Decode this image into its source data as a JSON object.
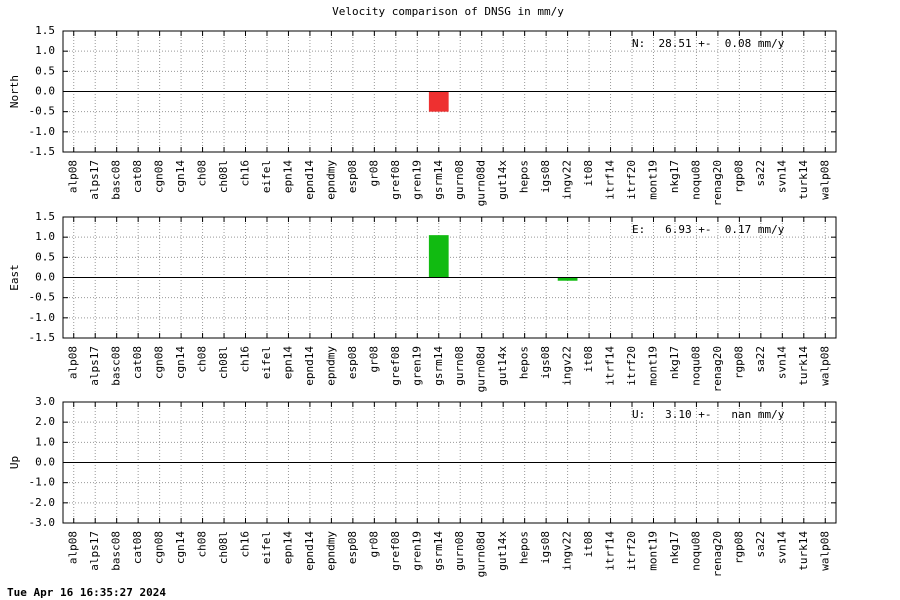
{
  "title": "Velocity comparison of DNSG in mm/y",
  "timestamp": "Tue Apr 16 16:35:27 2024",
  "chart_data": [
    {
      "type": "bar",
      "ylabel": "North",
      "annotation": "N:  28.51 +-  0.08 mm/y",
      "color": "#ee3030",
      "grid": true,
      "categories": [
        "alp08",
        "alps17",
        "basc08",
        "cat08",
        "cgn08",
        "cgn14",
        "ch08",
        "ch08l",
        "ch16",
        "eifel",
        "epn14",
        "epnd14",
        "epndmy",
        "esp08",
        "gr08",
        "gref08",
        "gren19",
        "gsrm14",
        "gurn08",
        "gurn08d",
        "gut14x",
        "hepos",
        "igs08",
        "ingv22",
        "it08",
        "itrf14",
        "itrf20",
        "mont19",
        "nkg17",
        "noqu08",
        "renag20",
        "rgp08",
        "sa22",
        "svn14",
        "turk14",
        "walp08"
      ],
      "values": [
        0,
        0,
        0,
        0,
        0,
        0,
        0,
        0,
        0,
        0,
        0,
        0,
        0,
        0,
        0,
        0,
        0,
        -0.5,
        0,
        0,
        0,
        0,
        0,
        0,
        0,
        0,
        0,
        0,
        0,
        0,
        0,
        0,
        0,
        0,
        0,
        0
      ],
      "ylim": [
        -1.5,
        1.5
      ],
      "yticks": [
        -1.5,
        {
          "value": -1,
          "label": "-1.0"
        },
        -0.5,
        {
          "value": 0,
          "label": "0.0"
        },
        0.5,
        {
          "value": 1,
          "label": "1.0"
        },
        1.5
      ]
    },
    {
      "type": "bar",
      "ylabel": "East",
      "annotation": "E:   6.93 +-  0.17 mm/y",
      "color": "#11bb11",
      "grid": true,
      "categories": [
        "alp08",
        "alps17",
        "basc08",
        "cat08",
        "cgn08",
        "cgn14",
        "ch08",
        "ch08l",
        "ch16",
        "eifel",
        "epn14",
        "epnd14",
        "epndmy",
        "esp08",
        "gr08",
        "gref08",
        "gren19",
        "gsrm14",
        "gurn08",
        "gurn08d",
        "gut14x",
        "hepos",
        "igs08",
        "ingv22",
        "it08",
        "itrf14",
        "itrf20",
        "mont19",
        "nkg17",
        "noqu08",
        "renag20",
        "rgp08",
        "sa22",
        "svn14",
        "turk14",
        "walp08"
      ],
      "values": [
        0,
        0,
        0,
        0,
        0,
        0,
        0,
        0,
        0,
        0,
        0,
        0,
        0,
        0,
        0,
        0,
        0,
        1.05,
        0,
        0,
        0,
        0,
        0,
        -0.08,
        0,
        0,
        0,
        0,
        0,
        0,
        0,
        0,
        0,
        0,
        0,
        0
      ],
      "ylim": [
        -1.5,
        1.5
      ],
      "yticks": [
        -1.5,
        {
          "value": -1,
          "label": "-1.0"
        },
        -0.5,
        {
          "value": 0,
          "label": "0.0"
        },
        0.5,
        {
          "value": 1,
          "label": "1.0"
        },
        1.5
      ]
    },
    {
      "type": "bar",
      "ylabel": "Up",
      "annotation": "U:   3.10 +-   nan mm/y",
      "color": "#3333ee",
      "grid": true,
      "categories": [
        "alp08",
        "alps17",
        "basc08",
        "cat08",
        "cgn08",
        "cgn14",
        "ch08",
        "ch08l",
        "ch16",
        "eifel",
        "epn14",
        "epnd14",
        "epndmy",
        "esp08",
        "gr08",
        "gref08",
        "gren19",
        "gsrm14",
        "gurn08",
        "gurn08d",
        "gut14x",
        "hepos",
        "igs08",
        "ingv22",
        "it08",
        "itrf14",
        "itrf20",
        "mont19",
        "nkg17",
        "noqu08",
        "renag20",
        "rgp08",
        "sa22",
        "svn14",
        "turk14",
        "walp08"
      ],
      "values": [
        0,
        0,
        0,
        0,
        0,
        0,
        0,
        0,
        0,
        0,
        0,
        0,
        0,
        0,
        0,
        0,
        0,
        0,
        0,
        0,
        0,
        0,
        0,
        0,
        0,
        0,
        0,
        0,
        0,
        0,
        0,
        0,
        0,
        0,
        0,
        0
      ],
      "ylim": [
        -3,
        3
      ],
      "yticks": [
        {
          "value": -3,
          "label": "-3.0"
        },
        {
          "value": -2,
          "label": "-2.0"
        },
        {
          "value": -1,
          "label": "-1.0"
        },
        {
          "value": 0,
          "label": "0.0"
        },
        {
          "value": 1,
          "label": "1.0"
        },
        {
          "value": 2,
          "label": "2.0"
        },
        {
          "value": 3,
          "label": "3.0"
        }
      ]
    }
  ]
}
